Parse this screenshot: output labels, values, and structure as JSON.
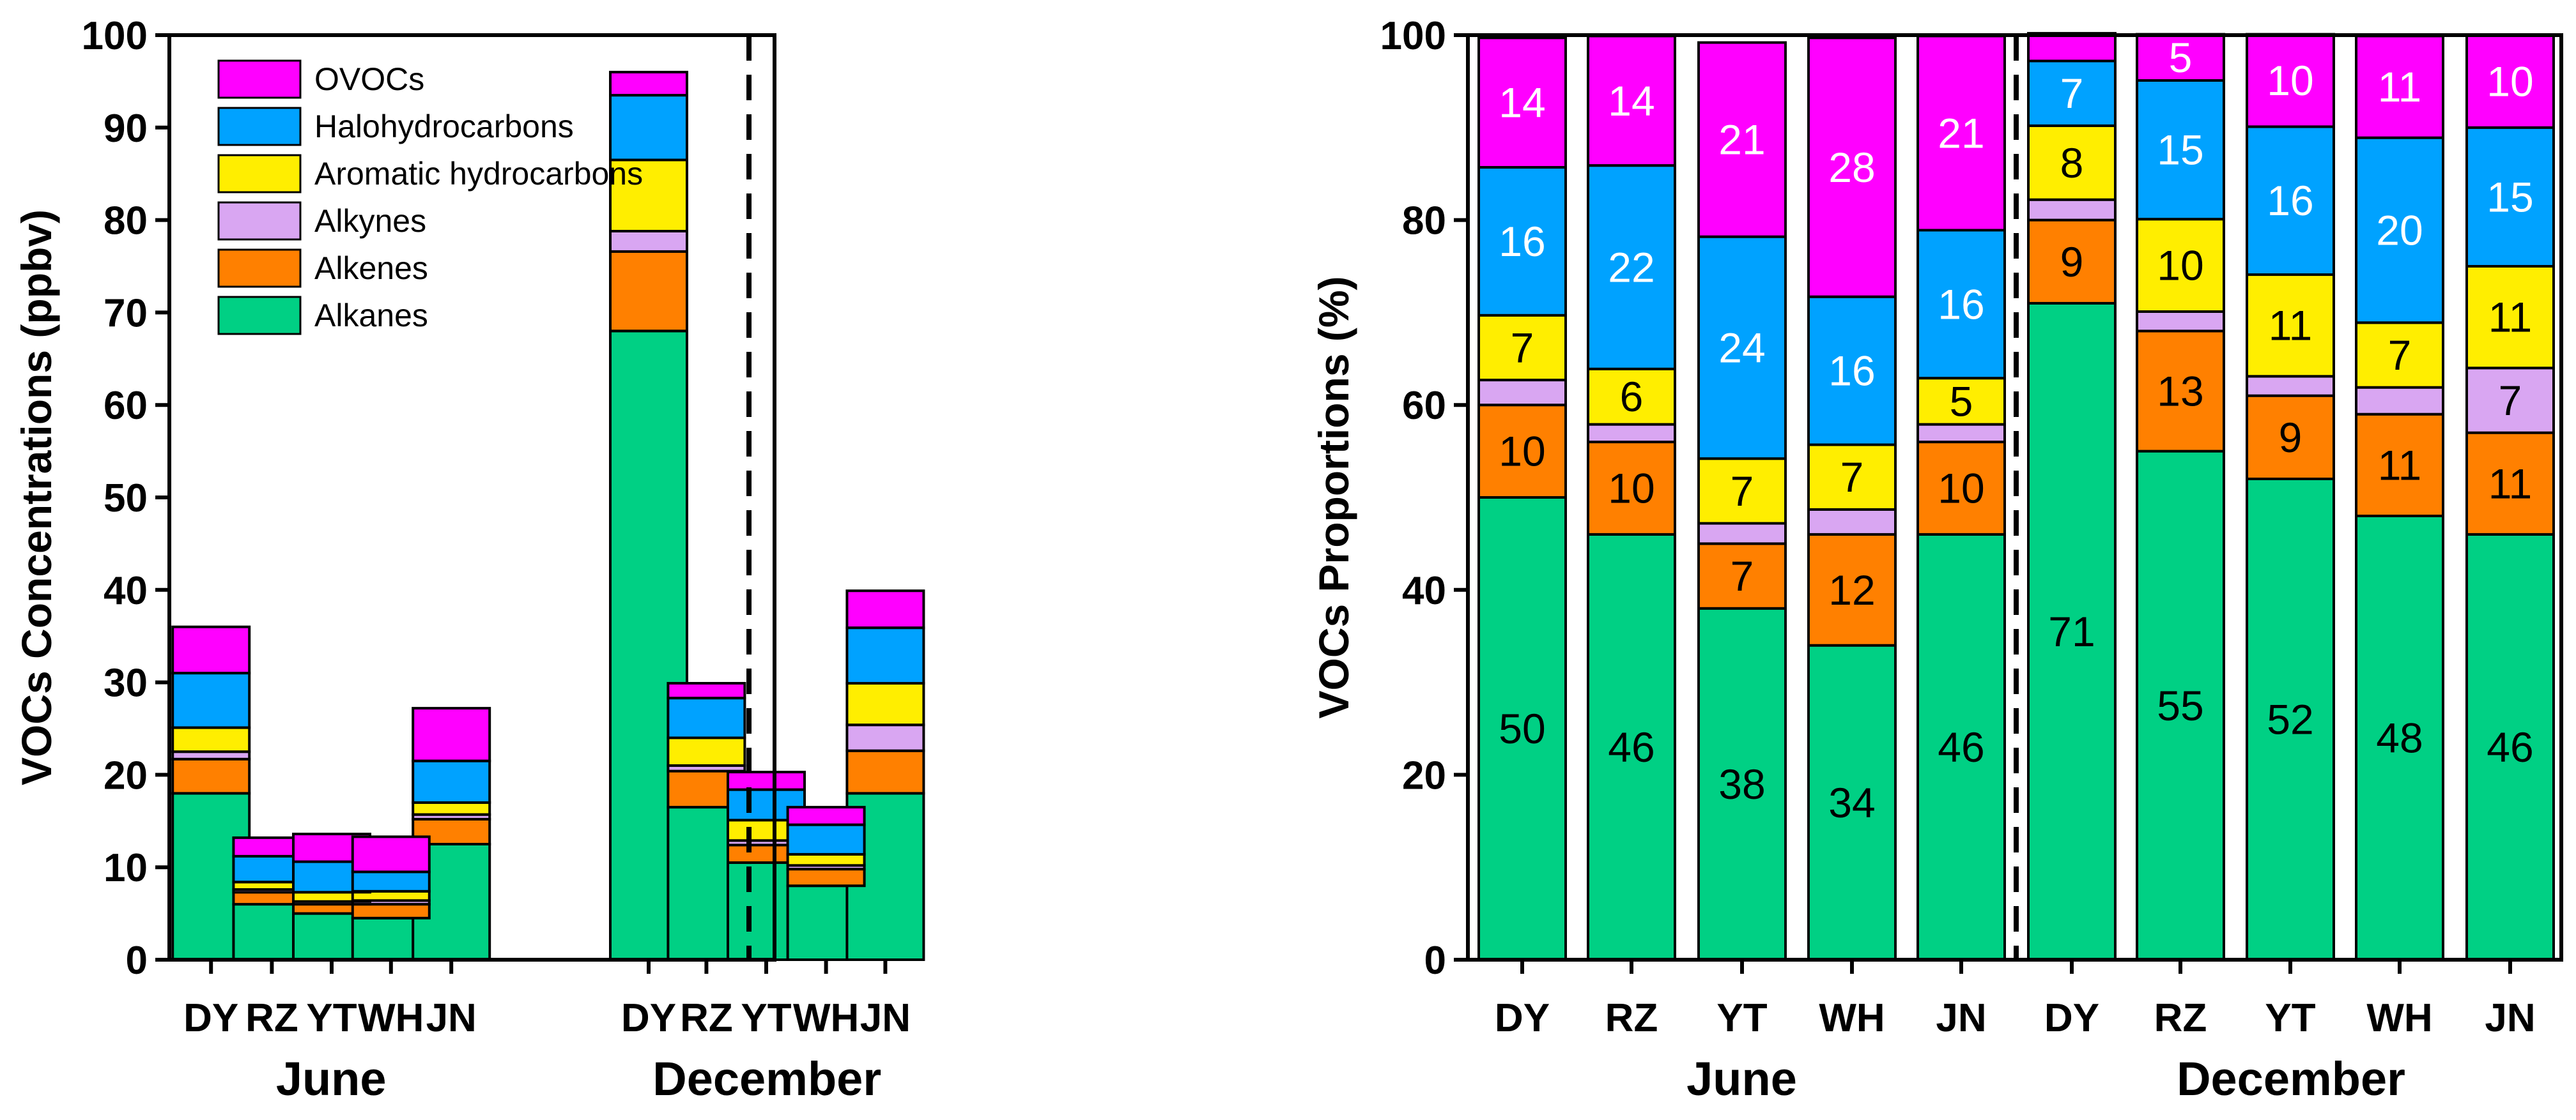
{
  "chart_data": [
    {
      "type": "bar",
      "stacked": true,
      "title": "",
      "xlabel": "",
      "ylabel": "VOCs Concentrations (ppbv)",
      "ylim": [
        0,
        100
      ],
      "yticks": [
        "0",
        "10",
        "20",
        "30",
        "40",
        "50",
        "60",
        "70",
        "80",
        "90",
        "100"
      ],
      "categories": [
        "DY",
        "RZ",
        "YT",
        "WH",
        "JN",
        "DY",
        "RZ",
        "YT",
        "WH",
        "JN"
      ],
      "groups": [
        {
          "label": "June",
          "start": 0,
          "end": 4
        },
        {
          "label": "December",
          "start": 5,
          "end": 9
        }
      ],
      "legend": [
        "OVOCs",
        "Halohydrocarbons",
        "Aromatic hydrocarbons",
        "Alkynes",
        "Alkenes",
        "Alkanes"
      ],
      "series": [
        {
          "name": "Alkanes",
          "color": "#00D084",
          "values": [
            18,
            6,
            5,
            4.5,
            12.5,
            68,
            16.5,
            10.5,
            8,
            18
          ]
        },
        {
          "name": "Alkenes",
          "color": "#FF8000",
          "values": [
            3.7,
            1.3,
            1,
            1.5,
            2.7,
            8.6,
            3.9,
            1.9,
            1.8,
            4.6
          ]
        },
        {
          "name": "Alkynes",
          "color": "#D9A6F2",
          "values": [
            0.8,
            0.3,
            0.3,
            0.4,
            0.5,
            2.2,
            0.6,
            0.5,
            0.4,
            2.8
          ]
        },
        {
          "name": "Aromatic hydrocarbons",
          "color": "#FFEE00",
          "values": [
            2.6,
            0.8,
            1,
            1,
            1.3,
            7.7,
            3,
            2.2,
            1.2,
            4.5
          ]
        },
        {
          "name": "Halohydrocarbons",
          "color": "#00A2FF",
          "values": [
            5.9,
            2.8,
            3.3,
            2.1,
            4.5,
            7,
            4.3,
            3.3,
            3.2,
            6
          ]
        },
        {
          "name": "OVOCs",
          "color": "#FF00FF",
          "values": [
            5,
            2,
            3,
            3.8,
            5.7,
            2.5,
            1.6,
            1.9,
            1.9,
            4
          ]
        }
      ]
    },
    {
      "type": "bar",
      "stacked": true,
      "title": "",
      "xlabel": "",
      "ylabel": "VOCs Proportions (%)",
      "ylim": [
        0,
        100
      ],
      "yticks": [
        "0",
        "20",
        "40",
        "60",
        "80",
        "100"
      ],
      "categories": [
        "DY",
        "RZ",
        "YT",
        "WH",
        "JN",
        "DY",
        "RZ",
        "YT",
        "WH",
        "JN"
      ],
      "groups": [
        {
          "label": "June",
          "start": 0,
          "end": 4
        },
        {
          "label": "December",
          "start": 5,
          "end": 9
        }
      ],
      "series": [
        {
          "name": "Alkanes",
          "color": "#00D084",
          "values": [
            50,
            46,
            38,
            34,
            46,
            71,
            55,
            52,
            48,
            46
          ],
          "labels": [
            "50",
            "46",
            "38",
            "34",
            "46",
            "71",
            "55",
            "52",
            "48",
            "46"
          ],
          "label_color": "#000000"
        },
        {
          "name": "Alkenes",
          "color": "#FF8000",
          "values": [
            10,
            10,
            7,
            12,
            10,
            9,
            13,
            9,
            11,
            11
          ],
          "labels": [
            "10",
            "10",
            "7",
            "12",
            "10",
            "9",
            "13",
            "9",
            "11",
            "11"
          ],
          "label_color": "#000000"
        },
        {
          "name": "Alkynes",
          "color": "#D9A6F2",
          "values": [
            2.7,
            1.9,
            2.2,
            2.7,
            1.9,
            2.2,
            2.1,
            2.1,
            2.9,
            7
          ],
          "labels": [
            "",
            "",
            "",
            "",
            "",
            "",
            "",
            "",
            "",
            "7"
          ],
          "label_color": "#000000"
        },
        {
          "name": "Aromatic hydrocarbons",
          "color": "#FFEE00",
          "values": [
            7,
            6,
            7,
            7,
            5,
            8,
            10,
            11,
            7,
            11
          ],
          "labels": [
            "7",
            "6",
            "7",
            "7",
            "5",
            "8",
            "10",
            "11",
            "7",
            "11"
          ],
          "label_color": "#000000"
        },
        {
          "name": "Halohydrocarbons",
          "color": "#00A2FF",
          "values": [
            16,
            22,
            24,
            16,
            16,
            7,
            15,
            16,
            20,
            15
          ],
          "labels": [
            "16",
            "22",
            "24",
            "16",
            "16",
            "7",
            "15",
            "16",
            "20",
            "15"
          ],
          "label_color": "#ffffff"
        },
        {
          "name": "OVOCs",
          "color": "#FF00FF",
          "values": [
            14,
            14,
            21,
            28,
            21,
            3,
            5,
            10,
            11,
            10
          ],
          "labels": [
            "14",
            "14",
            "21",
            "28",
            "21",
            "",
            "5",
            "10",
            "11",
            "10"
          ],
          "label_color": "#ffffff"
        }
      ]
    }
  ]
}
